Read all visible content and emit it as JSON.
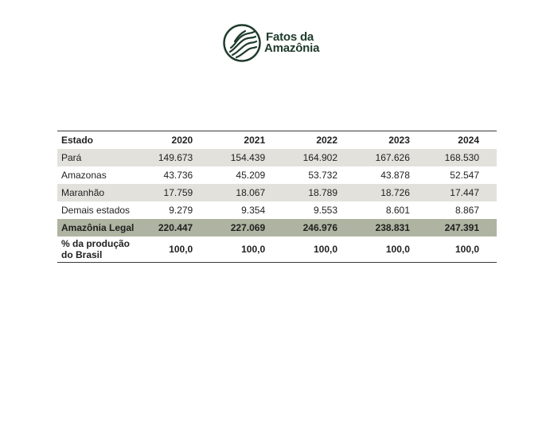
{
  "logo": {
    "line1": "Fatos da",
    "line2": "Amazônia",
    "icon": "stylized-leaf-contour-emblem-icon",
    "color": "#1e3a2b"
  },
  "table": {
    "headers": [
      "Estado",
      "2020",
      "2021",
      "2022",
      "2023",
      "2024"
    ],
    "rows": [
      {
        "label": "Pará",
        "values": [
          "149.673",
          "154.439",
          "164.902",
          "167.626",
          "168.530"
        ]
      },
      {
        "label": "Amazonas",
        "values": [
          "43.736",
          "45.209",
          "53.732",
          "43.878",
          "52.547"
        ]
      },
      {
        "label": "Maranhão",
        "values": [
          "17.759",
          "18.067",
          "18.789",
          "18.726",
          "17.447"
        ]
      },
      {
        "label": "Demais estados",
        "values": [
          "9.279",
          "9.354",
          "9.553",
          "8.601",
          "8.867"
        ]
      },
      {
        "label": "Amazônia Legal",
        "values": [
          "220.447",
          "227.069",
          "246.976",
          "238.831",
          "247.391"
        ]
      },
      {
        "label": "% da produção do Brasil",
        "values": [
          "100,0",
          "100,0",
          "100,0",
          "100,0",
          "100,0"
        ]
      }
    ],
    "colors": {
      "shade_row": "#e3e1dc",
      "total_row": "#aeb4a1",
      "rule": "#3a3a3a"
    }
  }
}
